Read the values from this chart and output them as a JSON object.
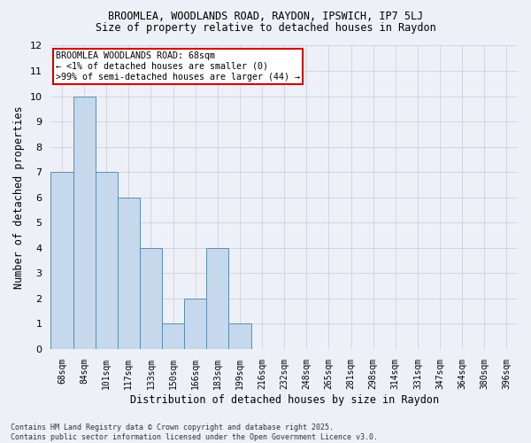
{
  "title1": "BROOMLEA, WOODLANDS ROAD, RAYDON, IPSWICH, IP7 5LJ",
  "title2": "Size of property relative to detached houses in Raydon",
  "xlabel": "Distribution of detached houses by size in Raydon",
  "ylabel": "Number of detached properties",
  "categories": [
    "68sqm",
    "84sqm",
    "101sqm",
    "117sqm",
    "133sqm",
    "150sqm",
    "166sqm",
    "183sqm",
    "199sqm",
    "216sqm",
    "232sqm",
    "248sqm",
    "265sqm",
    "281sqm",
    "298sqm",
    "314sqm",
    "331sqm",
    "347sqm",
    "364sqm",
    "380sqm",
    "396sqm"
  ],
  "values": [
    7,
    10,
    7,
    6,
    4,
    1,
    2,
    4,
    1,
    0,
    0,
    0,
    0,
    0,
    0,
    0,
    0,
    0,
    0,
    0,
    0
  ],
  "bar_color": "#c5d8ec",
  "bar_edge_color": "#5a8db5",
  "grid_color": "#c8ccd8",
  "background_color": "#eef0f8",
  "ylim": [
    0,
    12
  ],
  "yticks": [
    0,
    1,
    2,
    3,
    4,
    5,
    6,
    7,
    8,
    9,
    10,
    11,
    12
  ],
  "annotation_title": "BROOMLEA WOODLANDS ROAD: 68sqm",
  "annotation_line1": "← <1% of detached houses are smaller (0)",
  "annotation_line2": ">99% of semi-detached houses are larger (44) →",
  "annotation_box_facecolor": "#ffffff",
  "annotation_box_edge": "#cc0000",
  "footer": "Contains HM Land Registry data © Crown copyright and database right 2025.\nContains public sector information licensed under the Open Government Licence v3.0."
}
